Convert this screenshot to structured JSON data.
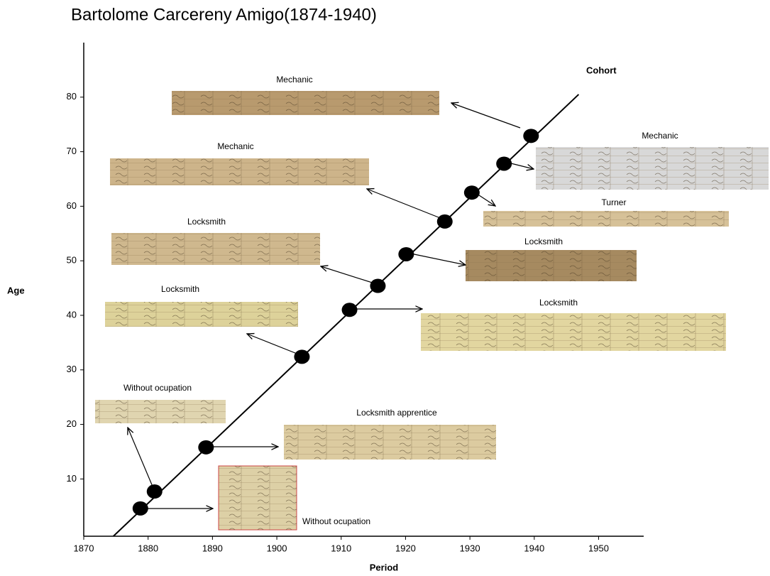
{
  "chart_data": {
    "type": "scatter",
    "title": "Bartolome Carcereny Amigo(1874-1940)",
    "xlabel": "Period",
    "ylabel": "Age",
    "x": [
      1878.8,
      1881.0,
      1889.0,
      1903.9,
      1911.3,
      1915.7,
      1920.1,
      1926.1,
      1930.3,
      1935.3,
      1939.5
    ],
    "values": [
      4.6,
      7.7,
      15.8,
      32.4,
      41.0,
      45.4,
      51.2,
      57.2,
      62.5,
      67.8,
      72.9
    ],
    "color": "#000000",
    "cohort": {
      "name": "Cohort",
      "x": [
        1874.6,
        1946.9
      ],
      "values": [
        -0.5,
        80.5
      ]
    },
    "annotations": [
      "Mechanic",
      "Mechanic",
      "Mechanic",
      "Turner",
      "Locksmith",
      "Locksmith",
      "Locksmith",
      "Locksmith",
      "Without ocupation",
      "Locksmith apprentice",
      "Without ocupation"
    ],
    "xlim": [
      1870,
      1957
    ],
    "ylim": [
      -0.5,
      90
    ],
    "xticks": [
      1870,
      1880,
      1890,
      1900,
      1910,
      1920,
      1930,
      1940,
      1950
    ],
    "yticks": [
      10,
      20,
      30,
      40,
      50,
      60,
      70,
      80
    ]
  }
}
